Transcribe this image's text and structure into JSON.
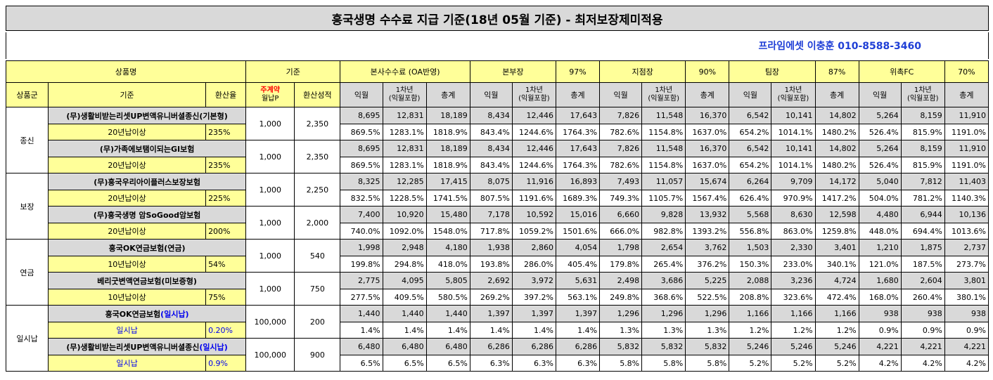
{
  "title": "흥국생명 수수료 지급 기준(18년 05월 기준) - 최저보장제미적용",
  "contact": "프라임에셋 이충훈 010-8588-3460",
  "header": {
    "product_name": "상품명",
    "basis": "기준",
    "hq_fee": "본사수수료 (OA반영)",
    "main_mgr": "본부장",
    "main_pct": "97%",
    "branch_mgr": "지점장",
    "branch_pct": "90%",
    "team_mgr": "팀장",
    "team_pct": "87%",
    "fc": "위촉FC",
    "fc_pct": "70%",
    "group": "상품군",
    "criteria": "기준",
    "conv_rate": "환산율",
    "monthly_line1": "주계약",
    "monthly_line2": "월납P",
    "conv_result": "환산성적",
    "col_month": "익월",
    "col_year1_l1": "1차년",
    "col_year1_l2": "(익월포함)",
    "col_total": "총계"
  },
  "groups": [
    {
      "name": "종신",
      "products": [
        {
          "name": "(무)생활비받는리셋UP변액유니버셜종신(기본형)",
          "name_highlight": "",
          "cond": "20년납이상",
          "rate": "235%",
          "monthly": "1,000",
          "conv": "2,350",
          "amounts": [
            "8,695",
            "12,831",
            "18,189",
            "8,434",
            "12,446",
            "17,643",
            "7,826",
            "11,548",
            "16,370",
            "6,542",
            "10,141",
            "14,802",
            "5,264",
            "8,159",
            "11,910"
          ],
          "rates": [
            "869.5%",
            "1283.1%",
            "1818.9%",
            "843.4%",
            "1244.6%",
            "1764.3%",
            "782.6%",
            "1154.8%",
            "1637.0%",
            "654.2%",
            "1014.1%",
            "1480.2%",
            "526.4%",
            "815.9%",
            "1191.0%"
          ]
        },
        {
          "name": "(무)가족에보탬이되는GI보험",
          "name_highlight": "",
          "cond": "20년납이상",
          "rate": "235%",
          "monthly": "1,000",
          "conv": "2,350",
          "amounts": [
            "8,695",
            "12,831",
            "18,189",
            "8,434",
            "12,446",
            "17,643",
            "7,826",
            "11,548",
            "16,370",
            "6,542",
            "10,141",
            "14,802",
            "5,264",
            "8,159",
            "11,910"
          ],
          "rates": [
            "869.5%",
            "1283.1%",
            "1818.9%",
            "843.4%",
            "1244.6%",
            "1764.3%",
            "782.6%",
            "1154.8%",
            "1637.0%",
            "654.2%",
            "1014.1%",
            "1480.2%",
            "526.4%",
            "815.9%",
            "1191.0%"
          ]
        }
      ]
    },
    {
      "name": "보장",
      "products": [
        {
          "name": "(무)흥국우리아이플러스보장보험",
          "name_highlight": "",
          "cond": "20년납이상",
          "rate": "225%",
          "monthly": "1,000",
          "conv": "2,250",
          "amounts": [
            "8,325",
            "12,285",
            "17,415",
            "8,075",
            "11,916",
            "16,893",
            "7,493",
            "11,057",
            "15,674",
            "6,264",
            "9,709",
            "14,172",
            "5,040",
            "7,812",
            "11,403"
          ],
          "rates": [
            "832.5%",
            "1228.5%",
            "1741.5%",
            "807.5%",
            "1191.6%",
            "1689.3%",
            "749.3%",
            "1105.7%",
            "1567.4%",
            "626.4%",
            "970.9%",
            "1417.2%",
            "504.0%",
            "781.2%",
            "1140.3%"
          ]
        },
        {
          "name": "(무)흥국생명 암SoGood암보험",
          "name_highlight": "",
          "cond": "20년납이상",
          "rate": "200%",
          "monthly": "1,000",
          "conv": "2,000",
          "amounts": [
            "7,400",
            "10,920",
            "15,480",
            "7,178",
            "10,592",
            "15,016",
            "6,660",
            "9,828",
            "13,932",
            "5,568",
            "8,630",
            "12,598",
            "4,480",
            "6,944",
            "10,136"
          ],
          "rates": [
            "740.0%",
            "1092.0%",
            "1548.0%",
            "717.8%",
            "1059.2%",
            "1501.6%",
            "666.0%",
            "982.8%",
            "1393.2%",
            "556.8%",
            "863.0%",
            "1259.8%",
            "448.0%",
            "694.4%",
            "1013.6%"
          ]
        }
      ]
    },
    {
      "name": "연금",
      "products": [
        {
          "name": "흥국OK연금보험(연금)",
          "name_highlight": "",
          "cond": "10년납이상",
          "rate": "54%",
          "monthly": "1,000",
          "conv": "540",
          "amounts": [
            "1,998",
            "2,948",
            "4,180",
            "1,938",
            "2,860",
            "4,054",
            "1,798",
            "2,654",
            "3,762",
            "1,503",
            "2,330",
            "3,401",
            "1,210",
            "1,875",
            "2,737"
          ],
          "rates": [
            "199.8%",
            "294.8%",
            "418.0%",
            "193.8%",
            "286.0%",
            "405.4%",
            "179.8%",
            "265.4%",
            "376.2%",
            "150.3%",
            "233.0%",
            "340.1%",
            "121.0%",
            "187.5%",
            "273.7%"
          ]
        },
        {
          "name": "베리굿변액연금보험(미보증형)",
          "name_highlight": "",
          "cond": "10년납이상",
          "rate": "75%",
          "monthly": "1,000",
          "conv": "750",
          "amounts": [
            "2,775",
            "4,095",
            "5,805",
            "2,692",
            "3,972",
            "5,631",
            "2,498",
            "3,686",
            "5,225",
            "2,088",
            "3,236",
            "4,724",
            "1,680",
            "2,604",
            "3,801"
          ],
          "rates": [
            "277.5%",
            "409.5%",
            "580.5%",
            "269.2%",
            "397.2%",
            "563.1%",
            "249.8%",
            "368.6%",
            "522.5%",
            "208.8%",
            "323.6%",
            "472.4%",
            "168.0%",
            "260.4%",
            "380.1%"
          ]
        }
      ]
    },
    {
      "name": "일시납",
      "products": [
        {
          "name": "흥국OK연금보험",
          "name_highlight": "(일시납)",
          "cond": "일시납",
          "rate": "0.20%",
          "monthly": "100,000",
          "conv": "200",
          "amounts": [
            "1,440",
            "1,440",
            "1,440",
            "1,397",
            "1,397",
            "1,397",
            "1,296",
            "1,296",
            "1,296",
            "1,166",
            "1,166",
            "1,166",
            "938",
            "938",
            "938"
          ],
          "rates": [
            "1.4%",
            "1.4%",
            "1.4%",
            "1.4%",
            "1.4%",
            "1.4%",
            "1.3%",
            "1.3%",
            "1.3%",
            "1.2%",
            "1.2%",
            "1.2%",
            "0.9%",
            "0.9%",
            "0.9%"
          ]
        },
        {
          "name": "(무)생활비받는리셋UP변액유니버셜종신",
          "name_highlight": "(일시납)",
          "cond": "일시납",
          "rate": "0.9%",
          "monthly": "100,000",
          "conv": "900",
          "amounts": [
            "6,480",
            "6,480",
            "6,480",
            "6,286",
            "6,286",
            "6,286",
            "5,832",
            "5,832",
            "5,832",
            "5,246",
            "5,246",
            "5,246",
            "4,221",
            "4,221",
            "4,221"
          ],
          "rates": [
            "6.5%",
            "6.5%",
            "6.5%",
            "6.3%",
            "6.3%",
            "6.3%",
            "5.8%",
            "5.8%",
            "5.8%",
            "5.2%",
            "5.2%",
            "5.2%",
            "4.2%",
            "4.2%",
            "4.2%"
          ]
        }
      ]
    }
  ]
}
